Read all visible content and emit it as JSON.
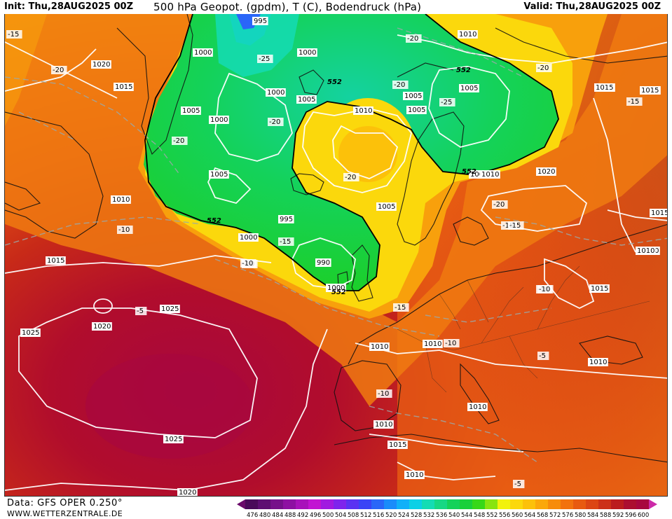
{
  "header": {
    "init": "Init: Thu,28AUG2025 00Z",
    "title": "500 hPa Geopot. (gpdm), T (C), Bodendruck (hPa)",
    "valid": "Valid: Thu,28AUG2025 00Z"
  },
  "footer": {
    "source": "Data: GFS OPER 0.250°",
    "website": "WWW.WETTERZENTRALE.DE"
  },
  "legend": {
    "arrow_left_color": "#6a0a6a",
    "arrow_right_color": "#cc2aa8",
    "levels": [
      {
        "label": "476",
        "color": "#4a0a5a"
      },
      {
        "label": "480",
        "color": "#5e0e72"
      },
      {
        "label": "484",
        "color": "#76108a"
      },
      {
        "label": "488",
        "color": "#8e10a2"
      },
      {
        "label": "492",
        "color": "#a812ba"
      },
      {
        "label": "496",
        "color": "#c214d2"
      },
      {
        "label": "500",
        "color": "#a11ae0"
      },
      {
        "label": "504",
        "color": "#7e24ec"
      },
      {
        "label": "508",
        "color": "#5a32f2"
      },
      {
        "label": "512",
        "color": "#3a44f6"
      },
      {
        "label": "516",
        "color": "#2a66f8"
      },
      {
        "label": "520",
        "color": "#1a8cfa"
      },
      {
        "label": "524",
        "color": "#10b0f8"
      },
      {
        "label": "528",
        "color": "#0cd0e6"
      },
      {
        "label": "532",
        "color": "#14dcb4"
      },
      {
        "label": "536",
        "color": "#16d884"
      },
      {
        "label": "540",
        "color": "#14d25a"
      },
      {
        "label": "544",
        "color": "#18d03a"
      },
      {
        "label": "548",
        "color": "#36d818"
      },
      {
        "label": "552",
        "color": "#88e410"
      },
      {
        "label": "556",
        "color": "#f2f20c"
      },
      {
        "label": "560",
        "color": "#fbd80c"
      },
      {
        "label": "564",
        "color": "#fcc10a"
      },
      {
        "label": "568",
        "color": "#fba80a"
      },
      {
        "label": "572",
        "color": "#f78c0a"
      },
      {
        "label": "576",
        "color": "#f2720e"
      },
      {
        "label": "580",
        "color": "#e85a10"
      },
      {
        "label": "584",
        "color": "#dc4514"
      },
      {
        "label": "588",
        "color": "#cc3018"
      },
      {
        "label": "592",
        "color": "#bb1c1e"
      },
      {
        "label": "596",
        "color": "#ac0e30"
      },
      {
        "label": "600",
        "color": "#a8073f"
      }
    ]
  },
  "map": {
    "colors": {
      "ocean_low": "#18c83e",
      "high": "#a8073f"
    },
    "pressure_labels": [
      "995",
      "1000",
      "1000",
      "1020",
      "1015",
      "1005",
      "1000",
      "1000",
      "1005",
      "1005",
      "1010",
      "1005",
      "1005",
      "1010",
      "1005",
      "1005",
      "1010",
      "1010",
      "1015",
      "1015",
      "1015",
      "1020",
      "1015",
      "1010",
      "1000",
      "995",
      "990",
      "1000",
      "1005",
      "1015",
      "1015",
      "1025",
      "1020",
      "1025",
      "1010",
      "1010",
      "1010",
      "1010",
      "1010",
      "1015",
      "1010",
      "1025",
      "1020",
      "1015",
      "1010",
      "1010"
    ],
    "temperature_labels": [
      "-15",
      "-20",
      "-25",
      "-20",
      "-20",
      "-20",
      "-20",
      "-25",
      "-20",
      "-20",
      "-15",
      "-10",
      "-10",
      "-15",
      "-10",
      "-15",
      "-20",
      "-15",
      "-10",
      "-5",
      "-15",
      "-10",
      "-10",
      "-5",
      "-10",
      "-5"
    ],
    "geopotential_labels": [
      "552",
      "552",
      "552",
      "552",
      "552"
    ]
  }
}
